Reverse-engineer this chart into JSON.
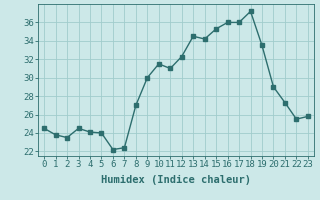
{
  "x": [
    0,
    1,
    2,
    3,
    4,
    5,
    6,
    7,
    8,
    9,
    10,
    11,
    12,
    13,
    14,
    15,
    16,
    17,
    18,
    19,
    20,
    21,
    22,
    23
  ],
  "y": [
    24.5,
    23.8,
    23.5,
    24.5,
    24.1,
    24.0,
    22.2,
    22.4,
    27.0,
    30.0,
    31.5,
    31.0,
    32.3,
    34.5,
    34.2,
    35.3,
    36.0,
    36.0,
    37.2,
    33.5,
    29.0,
    27.3,
    25.5,
    25.8
  ],
  "line_color": "#2d6e6e",
  "marker": "s",
  "marker_size": 2.5,
  "bg_color": "#cce8e8",
  "grid_color": "#a0cccc",
  "xlabel": "Humidex (Indice chaleur)",
  "xlabel_fontsize": 7.5,
  "ylim": [
    21.5,
    38.0
  ],
  "xlim": [
    -0.5,
    23.5
  ],
  "yticks": [
    22,
    24,
    26,
    28,
    30,
    32,
    34,
    36
  ],
  "xticks": [
    0,
    1,
    2,
    3,
    4,
    5,
    6,
    7,
    8,
    9,
    10,
    11,
    12,
    13,
    14,
    15,
    16,
    17,
    18,
    19,
    20,
    21,
    22,
    23
  ],
  "tick_fontsize": 6.5,
  "line_width": 1.0
}
